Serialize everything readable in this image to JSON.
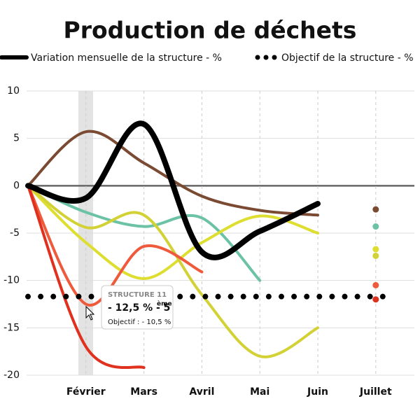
{
  "chart_data": {
    "type": "line",
    "title": "Production de déchets",
    "categories": [
      null,
      "Février",
      "Mars",
      "Avril",
      "Mai",
      "Juin",
      "Juillet"
    ],
    "ylim": [
      -20,
      10
    ],
    "yticks": [
      10,
      5,
      0,
      -5,
      -10,
      -15,
      -20
    ],
    "grid": true,
    "series": [
      {
        "name": "Variation mensuelle de la structure - %",
        "color": "#000000",
        "values": [
          0,
          -1.3,
          6.5,
          -7,
          -4.8,
          -1.9,
          null
        ]
      },
      {
        "color": "#7a4a32",
        "values": [
          0,
          5.7,
          2.4,
          -1.1,
          -2.6,
          -3.1,
          -2.5
        ]
      },
      {
        "color": "#6cc2a4",
        "values": [
          0,
          -2.8,
          -4.3,
          -3.4,
          -10,
          null,
          -4.3
        ]
      },
      {
        "color": "#dede30",
        "values": [
          0,
          -6,
          -9.8,
          -6,
          -3.2,
          -5,
          -6.7
        ]
      },
      {
        "color": "#d2d236",
        "values": [
          0,
          -4.4,
          -3.1,
          -11.5,
          -18,
          -15,
          -7.4
        ]
      },
      {
        "color": "#f05a3c",
        "values": [
          0,
          -12.5,
          -6.4,
          -9.1,
          null,
          null,
          -10.5
        ]
      },
      {
        "color": "#e0301e",
        "values": [
          0,
          -17,
          -19.2,
          null,
          null,
          null,
          -12
        ]
      }
    ],
    "objective": {
      "name": "Objectif de la structure - %",
      "value": -11.7,
      "color": "#000000"
    },
    "tooltip": {
      "title": "STRUCTURE 11",
      "value": "- 12,5 % - 5",
      "sup": "ème",
      "objective": "Objectif : - 10,5 %"
    }
  }
}
